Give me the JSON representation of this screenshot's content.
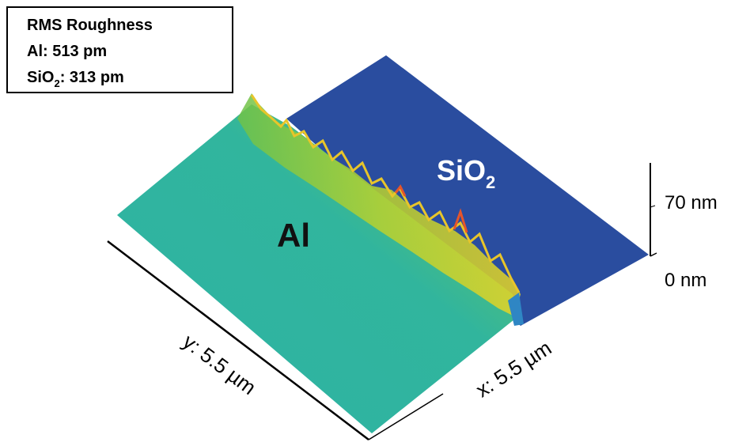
{
  "legend_box": {
    "title": "RMS Roughness",
    "al": "Al: 513 pm",
    "sio2": {
      "base": "SiO",
      "sub": "2",
      "rest": ": 313 pm"
    }
  },
  "surface_labels": {
    "sio2": {
      "base": "SiO",
      "sub": "2"
    },
    "al": "Al"
  },
  "z_axis": {
    "top": "70 nm",
    "bottom": "0 nm"
  },
  "y_axis": "y: 5.5 µm",
  "x_axis": "x: 5.5 µm"
}
